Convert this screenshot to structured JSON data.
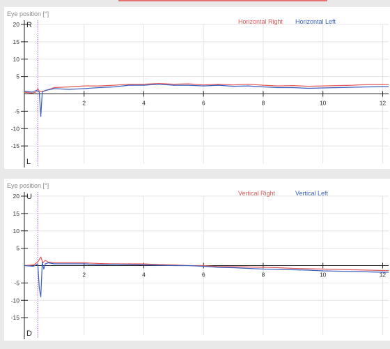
{
  "chart_data": [
    {
      "type": "line",
      "title": "Eye position [°]",
      "xlim": [
        0,
        12.2
      ],
      "ylim": [
        -20,
        20
      ],
      "x_ticks": [
        2,
        4,
        6,
        8,
        10,
        12
      ],
      "y_ticks": [
        20,
        15,
        10,
        5,
        -5,
        -10,
        -15
      ],
      "direction_labels": {
        "top": "R",
        "bottom": "L"
      },
      "grid": true,
      "legend_placement": "top-right",
      "series": [
        {
          "name": "Horizontal Right",
          "color": "#e05a5a",
          "x": [
            0,
            0.25,
            0.38,
            0.45,
            0.5,
            0.55,
            0.7,
            1.0,
            1.5,
            2.0,
            2.5,
            3.0,
            3.5,
            4.0,
            4.5,
            5.0,
            5.5,
            6.0,
            6.5,
            7.0,
            7.5,
            8.0,
            8.5,
            9.0,
            9.5,
            10.0,
            10.5,
            11.0,
            11.5,
            12.0,
            12.2
          ],
          "y": [
            0.5,
            0.2,
            0.5,
            1.5,
            0.8,
            0.6,
            0.9,
            1.8,
            2.0,
            2.3,
            2.3,
            2.5,
            2.8,
            2.8,
            3.0,
            2.8,
            2.9,
            2.6,
            2.8,
            2.6,
            2.8,
            2.5,
            2.3,
            2.4,
            2.2,
            2.3,
            2.4,
            2.5,
            2.7,
            2.7,
            2.7
          ]
        },
        {
          "name": "Horizontal Left",
          "color": "#3b5fc0",
          "x": [
            0,
            0.25,
            0.4,
            0.5,
            0.55,
            0.6,
            0.7,
            1.0,
            1.5,
            2.0,
            2.5,
            3.0,
            3.5,
            4.0,
            4.5,
            5.0,
            5.5,
            6.0,
            6.5,
            7.0,
            7.5,
            8.0,
            8.5,
            9.0,
            9.5,
            10.0,
            10.5,
            11.0,
            11.5,
            12.0,
            12.2
          ],
          "y": [
            0.8,
            0.5,
            1.0,
            0.5,
            -6.5,
            0.5,
            1.0,
            1.5,
            1.3,
            1.5,
            1.8,
            2.0,
            2.5,
            2.5,
            2.8,
            2.5,
            2.5,
            2.3,
            2.5,
            2.2,
            2.3,
            2.0,
            1.8,
            1.8,
            1.6,
            1.7,
            1.8,
            1.9,
            2.0,
            2.1,
            2.1
          ]
        }
      ]
    },
    {
      "type": "line",
      "title": "Eye position [°]",
      "xlim": [
        0,
        12.2
      ],
      "ylim": [
        -20,
        20
      ],
      "x_ticks": [
        2,
        4,
        6,
        8,
        10,
        12
      ],
      "y_ticks": [
        20,
        15,
        10,
        5,
        -5,
        -10,
        -15
      ],
      "direction_labels": {
        "top": "U",
        "bottom": "D"
      },
      "grid": true,
      "legend_placement": "top-right",
      "series": [
        {
          "name": "Vertical Right",
          "color": "#e05a5a",
          "x": [
            0,
            0.3,
            0.45,
            0.55,
            0.62,
            0.7,
            0.8,
            1.0,
            1.5,
            2.0,
            2.5,
            3.0,
            3.5,
            4.0,
            4.5,
            5.0,
            5.5,
            6.0,
            6.5,
            7.0,
            7.5,
            8.0,
            8.5,
            9.0,
            9.5,
            10.0,
            10.5,
            11.0,
            11.5,
            12.0,
            12.2
          ],
          "y": [
            0,
            0.2,
            1.0,
            2.5,
            0.8,
            1.5,
            1.0,
            0.8,
            0.8,
            0.8,
            0.6,
            0.5,
            0.5,
            0.5,
            0.3,
            0.2,
            0,
            0,
            -0.3,
            -0.3,
            -0.4,
            -0.5,
            -0.6,
            -0.8,
            -0.9,
            -1.0,
            -1.1,
            -1.2,
            -1.3,
            -1.4,
            -1.4
          ]
        },
        {
          "name": "Vertical Left",
          "color": "#3b5fc0",
          "x": [
            0,
            0.3,
            0.45,
            0.5,
            0.55,
            0.6,
            0.65,
            0.7,
            0.8,
            1.0,
            1.5,
            2.0,
            2.5,
            3.0,
            3.5,
            4.0,
            4.5,
            5.0,
            5.5,
            6.0,
            6.5,
            7.0,
            7.5,
            8.0,
            8.5,
            9.0,
            9.5,
            10.0,
            10.5,
            11.0,
            11.5,
            12.0,
            12.2
          ],
          "y": [
            0,
            -0.2,
            0.5,
            -6.5,
            -9.0,
            1.0,
            -1.0,
            0.5,
            0.8,
            0.5,
            0.5,
            0.5,
            0.3,
            0.4,
            0.3,
            0.2,
            0.1,
            0,
            0,
            -0.2,
            -0.5,
            -0.6,
            -0.8,
            -1.0,
            -1.1,
            -1.2,
            -1.3,
            -1.5,
            -1.6,
            -1.7,
            -1.8,
            -1.9,
            -1.9
          ]
        }
      ]
    }
  ]
}
